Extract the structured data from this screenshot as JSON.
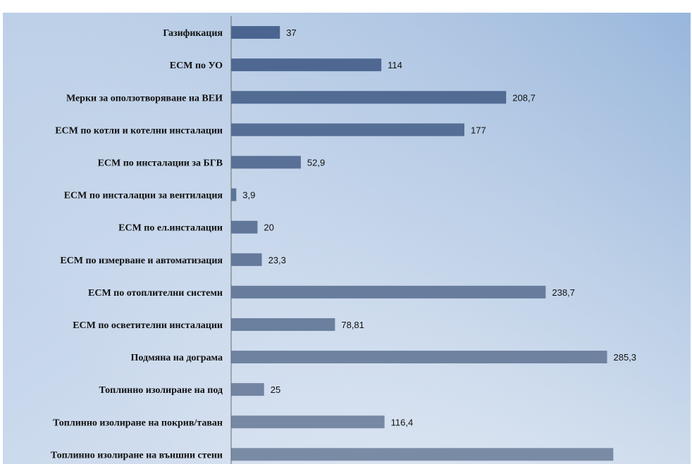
{
  "page_title_fragment": "",
  "chart_data": {
    "type": "bar",
    "orientation": "horizontal",
    "categories": [
      "Газификация",
      "ЕСМ по УО",
      "Мерки за оползотворяване на ВЕИ",
      "ЕСМ по котли и котелни инсталации",
      "ЕСМ по инсталации за БГВ",
      "ЕСМ по инсталации за вентилация",
      "ЕСМ по ел.инсталации",
      "ЕСМ по измерване и автоматизация",
      "ЕСМ по отоплителни системи",
      "ЕСМ по осветителни инсталации",
      "Подмяна на дограма",
      "Топлинно изолиране на под",
      "Топлинно изолиране на покрив/таван",
      "Топлинно изолиране на външни стени"
    ],
    "values": [
      37,
      114,
      208.7,
      177,
      52.9,
      3.9,
      20,
      23.3,
      238.7,
      78.81,
      285.3,
      25,
      116.4,
      290
    ],
    "value_labels": [
      "37",
      "114",
      "208,7",
      "177",
      "52,9",
      "3,9",
      "20",
      "23,3",
      "238,7",
      "78,81",
      "285,3",
      "25",
      "116,4",
      ""
    ],
    "title": "",
    "xlabel": "",
    "ylabel": "",
    "grid": false,
    "legend": "none",
    "colors": {
      "bar_top": "#4a6590",
      "bar_bottom": "#7a8ba5",
      "bg_top_left": "#b9cde6",
      "bg_bottom": "#dfe7f2",
      "bg_top_right": "#8fb0d8",
      "axis": "#6a6a6a"
    }
  }
}
